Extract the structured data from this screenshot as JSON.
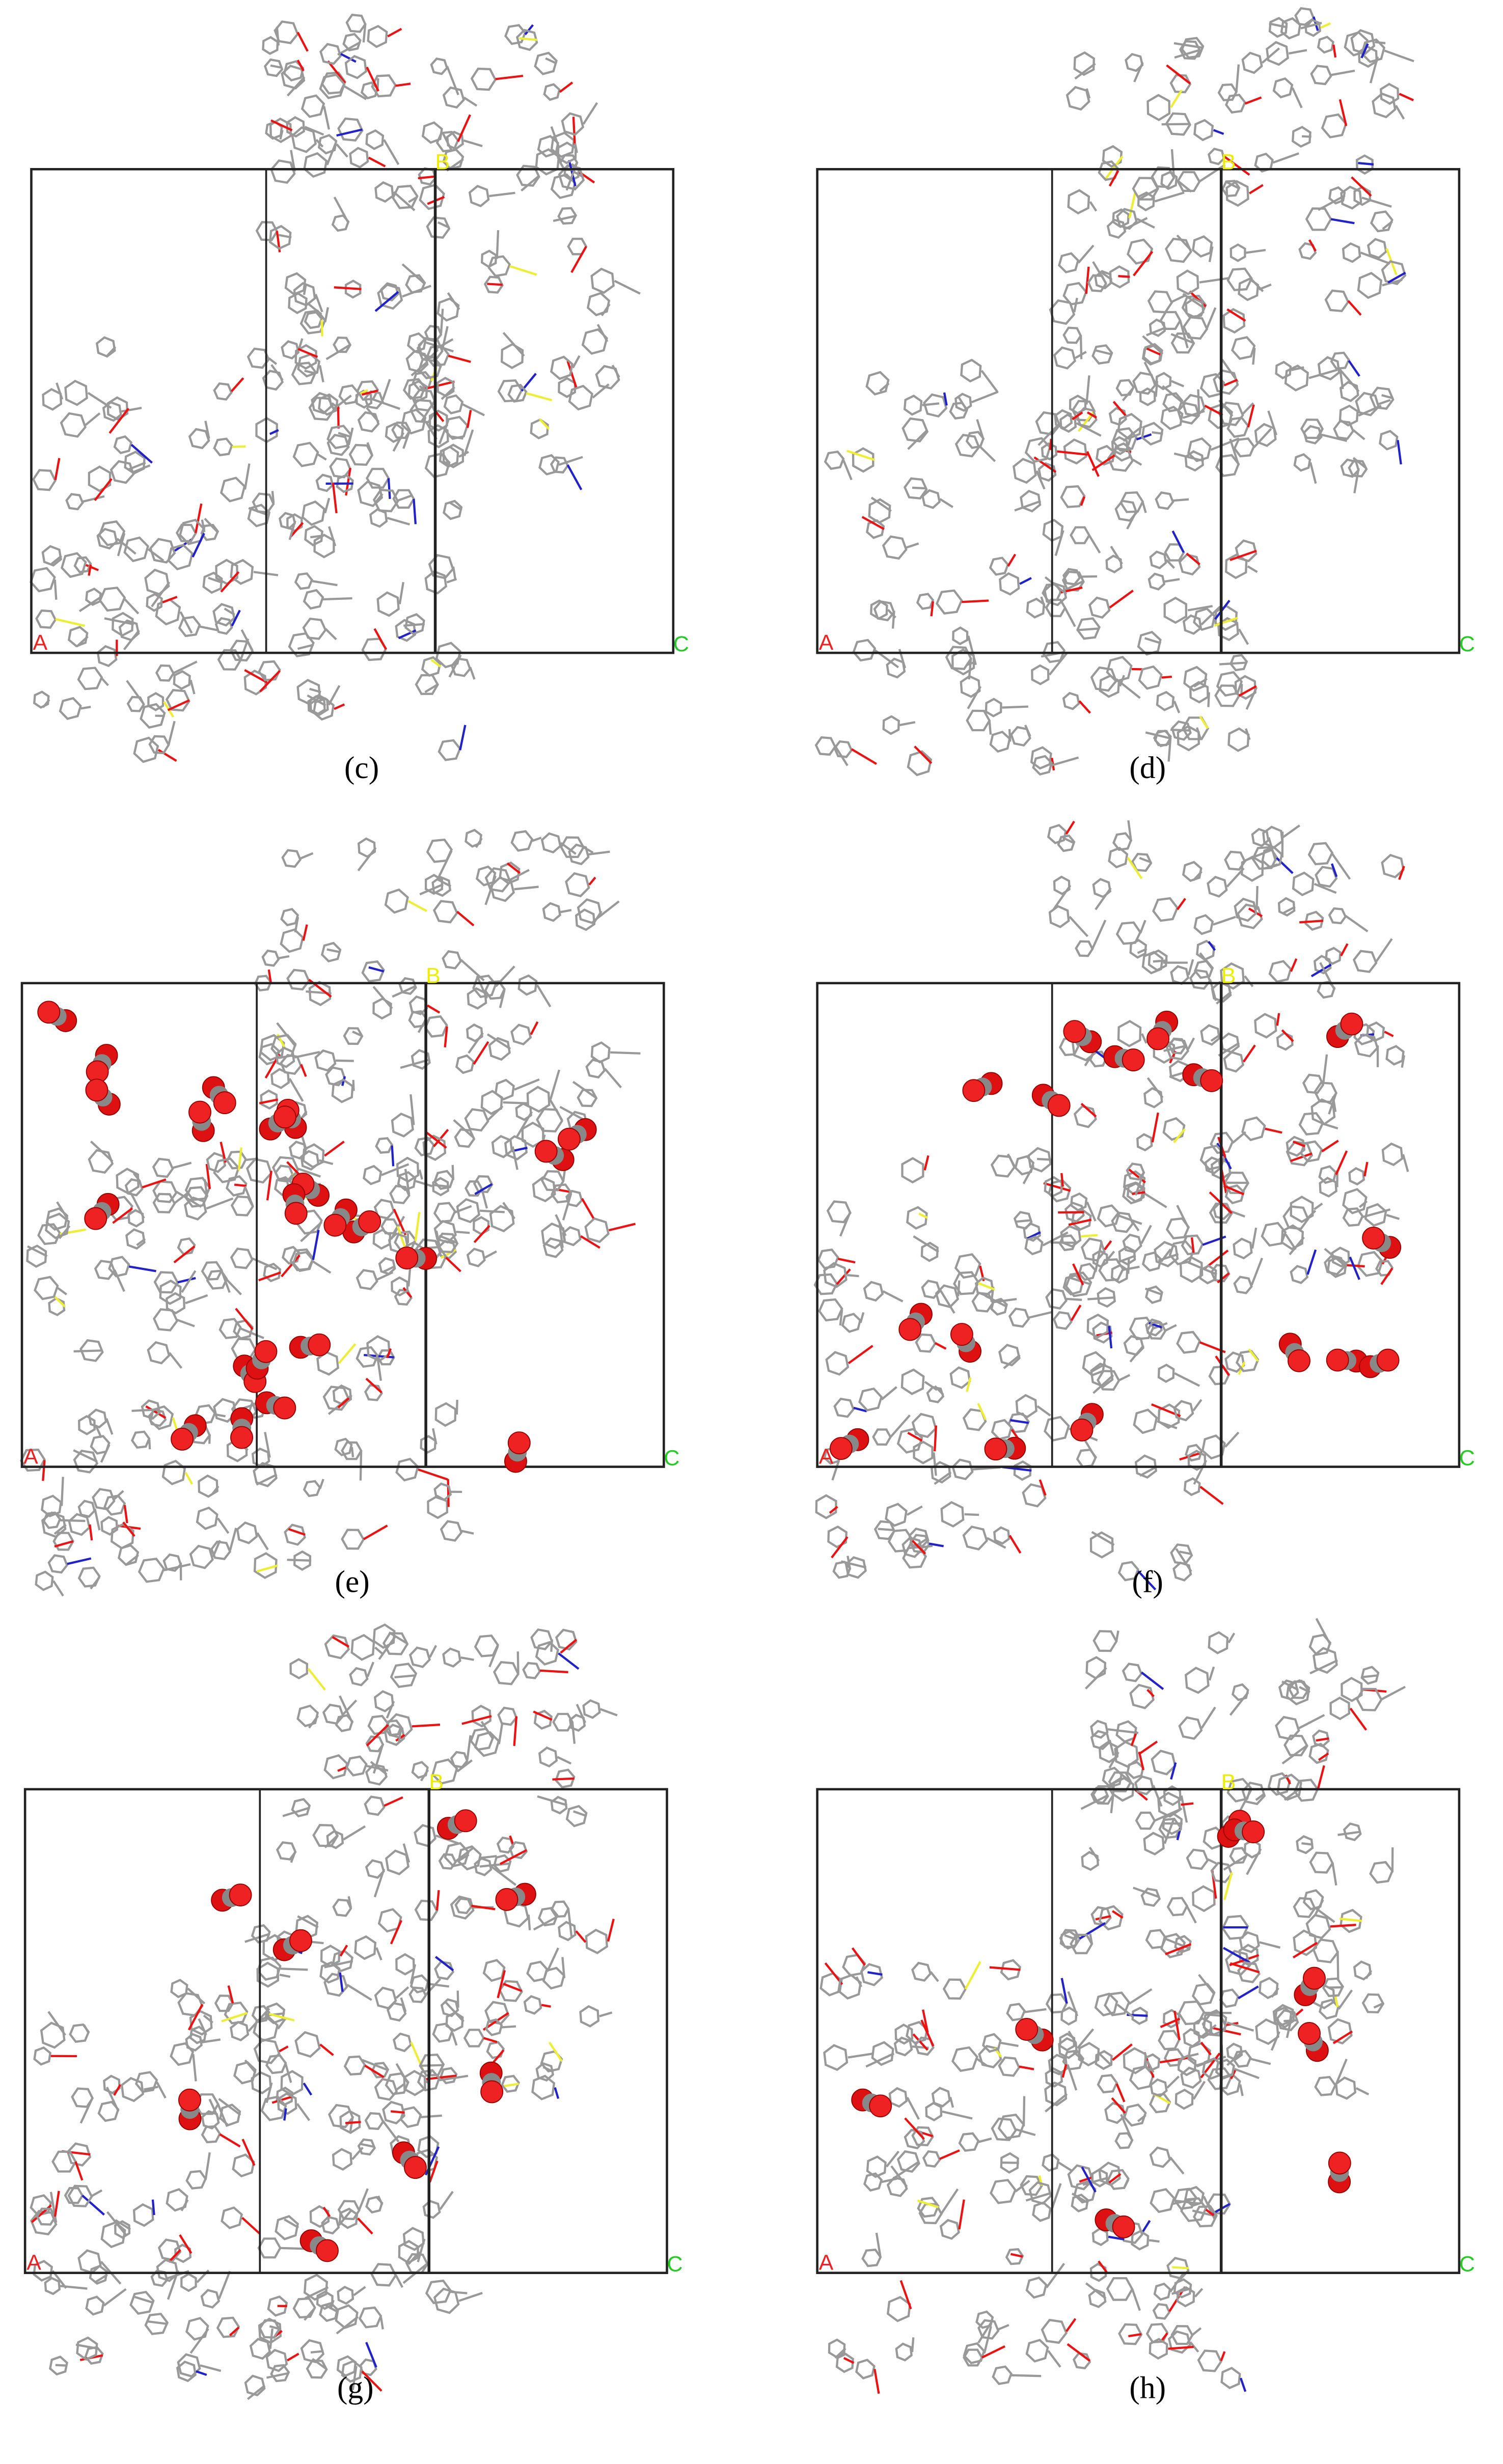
{
  "panels": [
    {
      "label": "(c)",
      "axes": {
        "a": "A",
        "b": "B",
        "c": "C"
      }
    },
    {
      "label": "(d)",
      "axes": {
        "a": "A",
        "b": "B",
        "c": "C"
      }
    },
    {
      "label": "(e)",
      "axes": {
        "a": "A",
        "b": "B",
        "c": "C"
      }
    },
    {
      "label": "(f)",
      "axes": {
        "a": "A",
        "b": "B",
        "c": "C"
      }
    },
    {
      "label": "(g)",
      "axes": {
        "a": "A",
        "b": "B",
        "c": "C"
      }
    },
    {
      "label": "(h)",
      "axes": {
        "a": "A",
        "b": "B",
        "c": "C"
      }
    }
  ]
}
